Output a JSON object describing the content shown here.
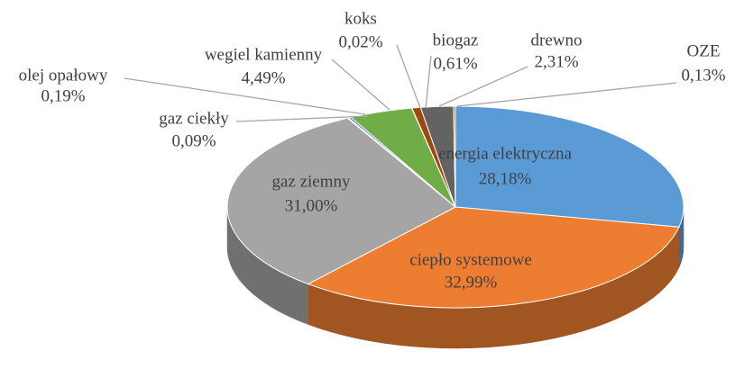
{
  "chart_data": {
    "type": "pie3d",
    "categories": [
      "energia elektryczna",
      "ciepło systemowe",
      "gaz ziemny",
      "gaz ciekły",
      "olej opałowy",
      "wegiel kamienny",
      "koks",
      "biogaz",
      "drewno",
      "OZE"
    ],
    "values": [
      28.18,
      32.99,
      31.0,
      0.09,
      0.19,
      4.49,
      0.02,
      0.61,
      2.31,
      0.13
    ],
    "value_labels": [
      "28,18%",
      "32,99%",
      "31,00%",
      "0,09%",
      "0,19%",
      "4,49%",
      "0,02%",
      "0,61%",
      "2,31%",
      "0,13%"
    ],
    "colors": [
      "#5b9bd5",
      "#ed7d31",
      "#a5a5a5",
      "#ffc000",
      "#4472c4",
      "#70ad47",
      "#264478",
      "#9e480e",
      "#636363",
      "#997300"
    ]
  }
}
